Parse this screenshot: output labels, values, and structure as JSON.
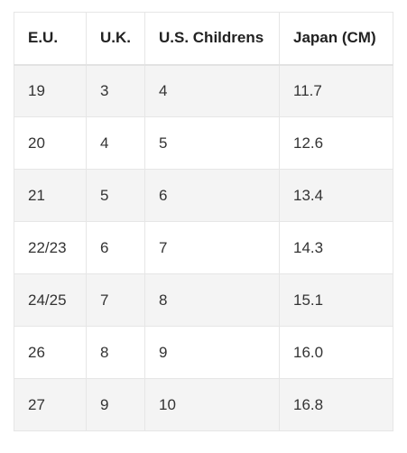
{
  "table": {
    "headers": [
      "E.U.",
      "U.K.",
      "U.S. Childrens",
      "Japan (CM)"
    ],
    "rows": [
      [
        "19",
        "3",
        "4",
        "11.7"
      ],
      [
        "20",
        "4",
        "5",
        "12.6"
      ],
      [
        "21",
        "5",
        "6",
        "13.4"
      ],
      [
        "22/23",
        "6",
        "7",
        "14.3"
      ],
      [
        "24/25",
        "7",
        "8",
        "15.1"
      ],
      [
        "26",
        "8",
        "9",
        "16.0"
      ],
      [
        "27",
        "9",
        "10",
        "16.8"
      ]
    ]
  },
  "colors": {
    "border": "#e6e6e6",
    "stripe": "#f4f4f4",
    "text": "#333333"
  }
}
